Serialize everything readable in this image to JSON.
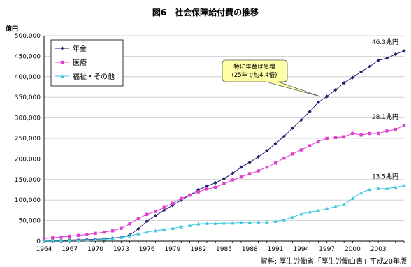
{
  "chart_data": {
    "type": "line",
    "title": "図6　社会保障給付費の推移",
    "ylabel": "億円",
    "xlabel": "",
    "ylim": [
      0,
      500000
    ],
    "yticks": [
      "0",
      "50,000",
      "100,000",
      "150,000",
      "200,000",
      "250,000",
      "300,000",
      "350,000",
      "400,000",
      "450,000",
      "500,000"
    ],
    "ytick_values": [
      0,
      50000,
      100000,
      150000,
      200000,
      250000,
      300000,
      350000,
      400000,
      450000,
      500000
    ],
    "xticks": [
      "1964",
      "1967",
      "1970",
      "1973",
      "1976",
      "1979",
      "1982",
      "1985",
      "1988",
      "1991",
      "1994",
      "1997",
      "2000",
      "2003"
    ],
    "xtick_values": [
      1964,
      1967,
      1970,
      1973,
      1976,
      1979,
      1982,
      1985,
      1988,
      1991,
      1994,
      1997,
      2000,
      2003
    ],
    "xlim": [
      1964,
      2006
    ],
    "grid": "horizontal",
    "legend_position": "top-left",
    "x": [
      1964,
      1965,
      1966,
      1967,
      1968,
      1969,
      1970,
      1971,
      1972,
      1973,
      1974,
      1975,
      1976,
      1977,
      1978,
      1979,
      1980,
      1981,
      1982,
      1983,
      1984,
      1985,
      1986,
      1987,
      1988,
      1989,
      1990,
      1991,
      1992,
      1993,
      1994,
      1995,
      1996,
      1997,
      1998,
      1999,
      2000,
      2001,
      2002,
      2003,
      2004,
      2005,
      2006
    ],
    "series": [
      {
        "name": "年金",
        "color": "#1f1f6e",
        "marker": "diamond",
        "values": [
          1500,
          1800,
          2200,
          2700,
          3200,
          3900,
          4500,
          5400,
          7200,
          9500,
          15000,
          30000,
          48000,
          62000,
          75000,
          87000,
          100000,
          112000,
          125000,
          134000,
          142000,
          152000,
          165000,
          180000,
          192000,
          205000,
          220000,
          237000,
          255000,
          275000,
          295000,
          315000,
          338000,
          352000,
          368000,
          385000,
          398000,
          412000,
          425000,
          440000,
          445000,
          455000,
          463000
        ]
      },
      {
        "name": "医療",
        "color": "#e040d0",
        "marker": "square",
        "values": [
          6500,
          8000,
          10000,
          12000,
          14000,
          16000,
          19000,
          22000,
          25000,
          31000,
          42000,
          55000,
          65000,
          72000,
          82000,
          92000,
          104000,
          112000,
          120000,
          127000,
          131000,
          140000,
          149000,
          156000,
          164000,
          171000,
          180000,
          190000,
          202000,
          212000,
          222000,
          232000,
          243000,
          250000,
          252000,
          254000,
          262000,
          258000,
          262000,
          262000,
          268000,
          272000,
          281000
        ]
      },
      {
        "name": "福祉・その他",
        "color": "#40c8e0",
        "marker": "triangle",
        "values": [
          1000,
          1200,
          1500,
          2000,
          2500,
          3000,
          3500,
          4500,
          6000,
          9000,
          13000,
          18000,
          22000,
          25000,
          29000,
          31000,
          35000,
          38000,
          42000,
          43000,
          43000,
          44000,
          44000,
          45000,
          46000,
          46000,
          46000,
          48000,
          52000,
          58000,
          66000,
          71000,
          74000,
          79000,
          84000,
          89000,
          104000,
          118000,
          126000,
          128000,
          128000,
          131000,
          135000
        ]
      }
    ],
    "end_labels": [
      "46.3兆円",
      "28.1兆円",
      "13.5兆円"
    ],
    "annotation": {
      "lines": [
        "特に年金は急増",
        "(25年で約4.4倍)"
      ]
    },
    "source": "資料: 厚生労働省「厚生労働白書」平成20年版"
  }
}
